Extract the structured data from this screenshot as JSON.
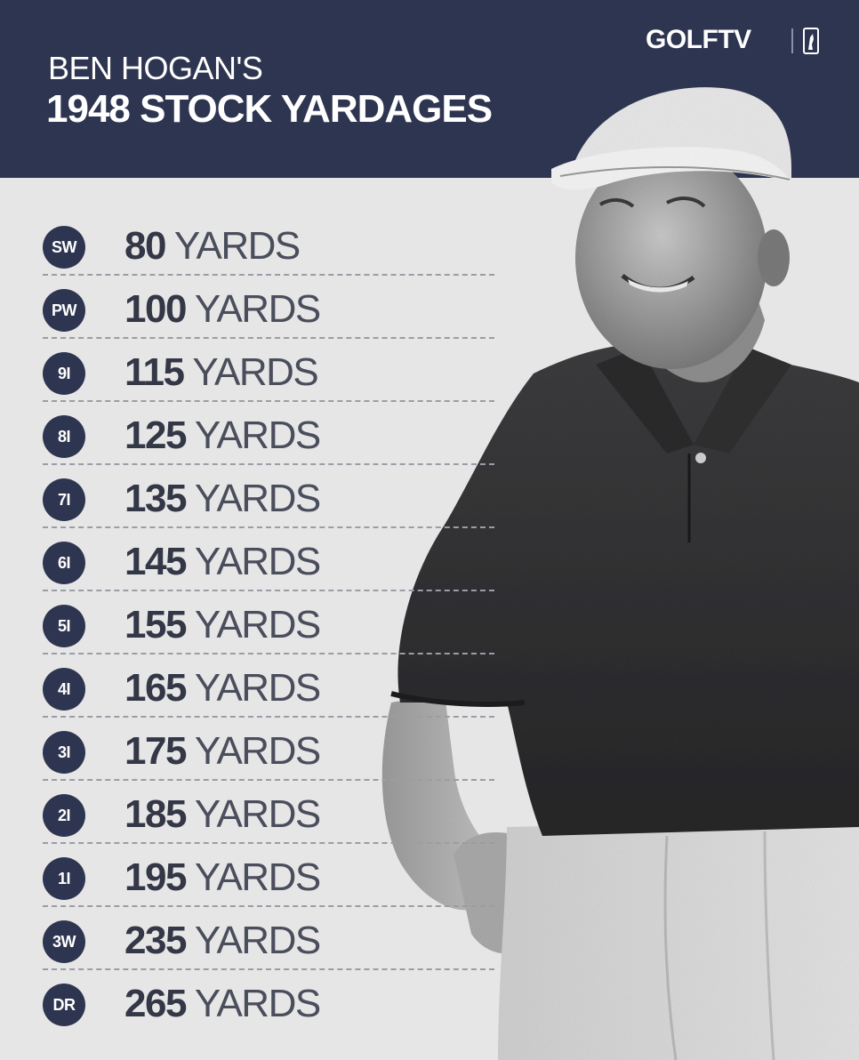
{
  "header": {
    "title_line1": "BEN HOGAN'S",
    "title_line2": "1948 STOCK YARDAGES",
    "brand": "GOLFTV",
    "accent_color": "#2e3550"
  },
  "clubs": [
    {
      "club": "SW",
      "yards": "80",
      "unit": "YARDS"
    },
    {
      "club": "PW",
      "yards": "100",
      "unit": "YARDS"
    },
    {
      "club": "9I",
      "yards": "115",
      "unit": "YARDS"
    },
    {
      "club": "8I",
      "yards": "125",
      "unit": "YARDS"
    },
    {
      "club": "7I",
      "yards": "135",
      "unit": "YARDS"
    },
    {
      "club": "6I",
      "yards": "145",
      "unit": "YARDS"
    },
    {
      "club": "5I",
      "yards": "155",
      "unit": "YARDS"
    },
    {
      "club": "4I",
      "yards": "165",
      "unit": "YARDS"
    },
    {
      "club": "3I",
      "yards": "175",
      "unit": "YARDS"
    },
    {
      "club": "2I",
      "yards": "185",
      "unit": "YARDS"
    },
    {
      "club": "1I",
      "yards": "195",
      "unit": "YARDS"
    },
    {
      "club": "3W",
      "yards": "235",
      "unit": "YARDS"
    },
    {
      "club": "DR",
      "yards": "265",
      "unit": "YARDS"
    }
  ]
}
